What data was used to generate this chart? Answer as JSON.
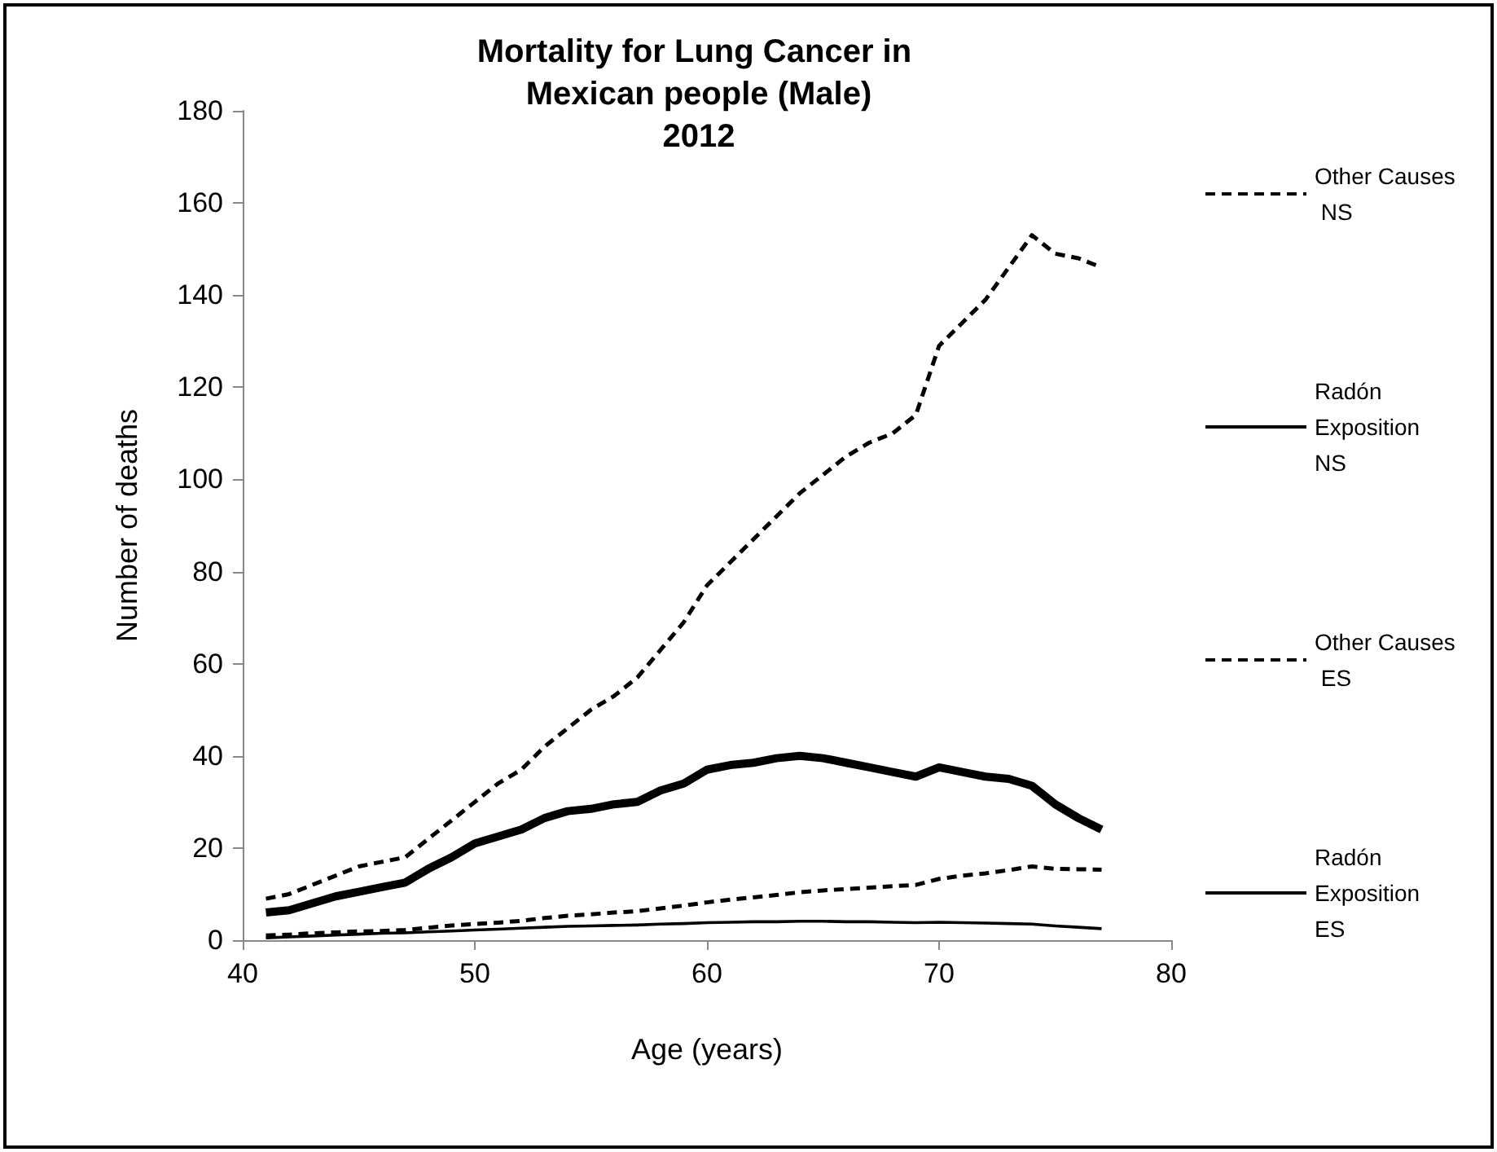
{
  "chart_data": {
    "type": "line",
    "title": "Mortality for Lung Cancer in Mexican people (Male)\n2012",
    "xlabel": "Age (years)",
    "ylabel": "Number of deaths",
    "x": [
      41,
      42,
      43,
      44,
      45,
      46,
      47,
      48,
      49,
      50,
      51,
      52,
      53,
      54,
      55,
      56,
      57,
      58,
      59,
      60,
      61,
      62,
      63,
      64,
      65,
      66,
      67,
      68,
      69,
      70,
      71,
      72,
      73,
      74,
      75,
      76,
      77
    ],
    "series": [
      {
        "name": "Other Causes NS",
        "color": "#000000",
        "line_style": "dashed",
        "values": [
          9,
          10,
          12,
          14,
          16,
          17,
          18,
          22,
          26,
          30,
          34,
          37,
          42,
          46,
          50,
          53,
          57,
          63,
          69,
          77,
          82,
          87,
          92,
          97,
          101,
          105,
          108,
          110,
          114,
          129,
          134,
          139,
          146,
          153,
          149,
          148,
          146
        ]
      },
      {
        "name": "Radón Exposition NS",
        "color": "#000000",
        "line_style": "solid",
        "values": [
          0.5,
          0.7,
          0.9,
          1.1,
          1.3,
          1.5,
          1.6,
          1.8,
          2,
          2.2,
          2.4,
          2.6,
          2.8,
          3,
          3.1,
          3.2,
          3.3,
          3.5,
          3.6,
          3.8,
          3.9,
          4,
          4,
          4.1,
          4.1,
          4,
          4,
          3.9,
          3.8,
          3.9,
          3.8,
          3.7,
          3.6,
          3.5,
          3.1,
          2.8,
          2.5
        ]
      },
      {
        "name": "Other Causes ES",
        "color": "#000000",
        "line_style": "dashed",
        "values": [
          1,
          1.2,
          1.5,
          1.7,
          1.9,
          2,
          2.2,
          2.7,
          3.2,
          3.5,
          3.8,
          4.2,
          4.8,
          5.3,
          5.6,
          6,
          6.3,
          6.9,
          7.5,
          8.2,
          8.8,
          9.3,
          9.8,
          10.4,
          10.8,
          11.1,
          11.4,
          11.7,
          12,
          13.3,
          14,
          14.5,
          15.2,
          16,
          15.5,
          15.4,
          15.3
        ]
      },
      {
        "name": "Radón Exposition ES",
        "color": "#000000",
        "line_style": "solid",
        "values": [
          6,
          6.5,
          8,
          9.5,
          10.5,
          11.5,
          12.5,
          15.5,
          18,
          21,
          22.5,
          24,
          26.5,
          28,
          28.5,
          29.5,
          30,
          32.5,
          34,
          37,
          38,
          38.5,
          39.5,
          40,
          39.5,
          38.5,
          37.5,
          36.5,
          35.5,
          37.5,
          36.5,
          35.5,
          35,
          33.5,
          29.5,
          26.5,
          24
        ]
      }
    ],
    "xlim": [
      40,
      80
    ],
    "xticks": [
      40,
      50,
      60,
      70,
      80
    ],
    "ylim": [
      0,
      180
    ],
    "yticks": [
      0,
      20,
      40,
      60,
      80,
      100,
      120,
      140,
      160,
      180
    ],
    "grid": false,
    "legend": "right",
    "marker": "none"
  }
}
